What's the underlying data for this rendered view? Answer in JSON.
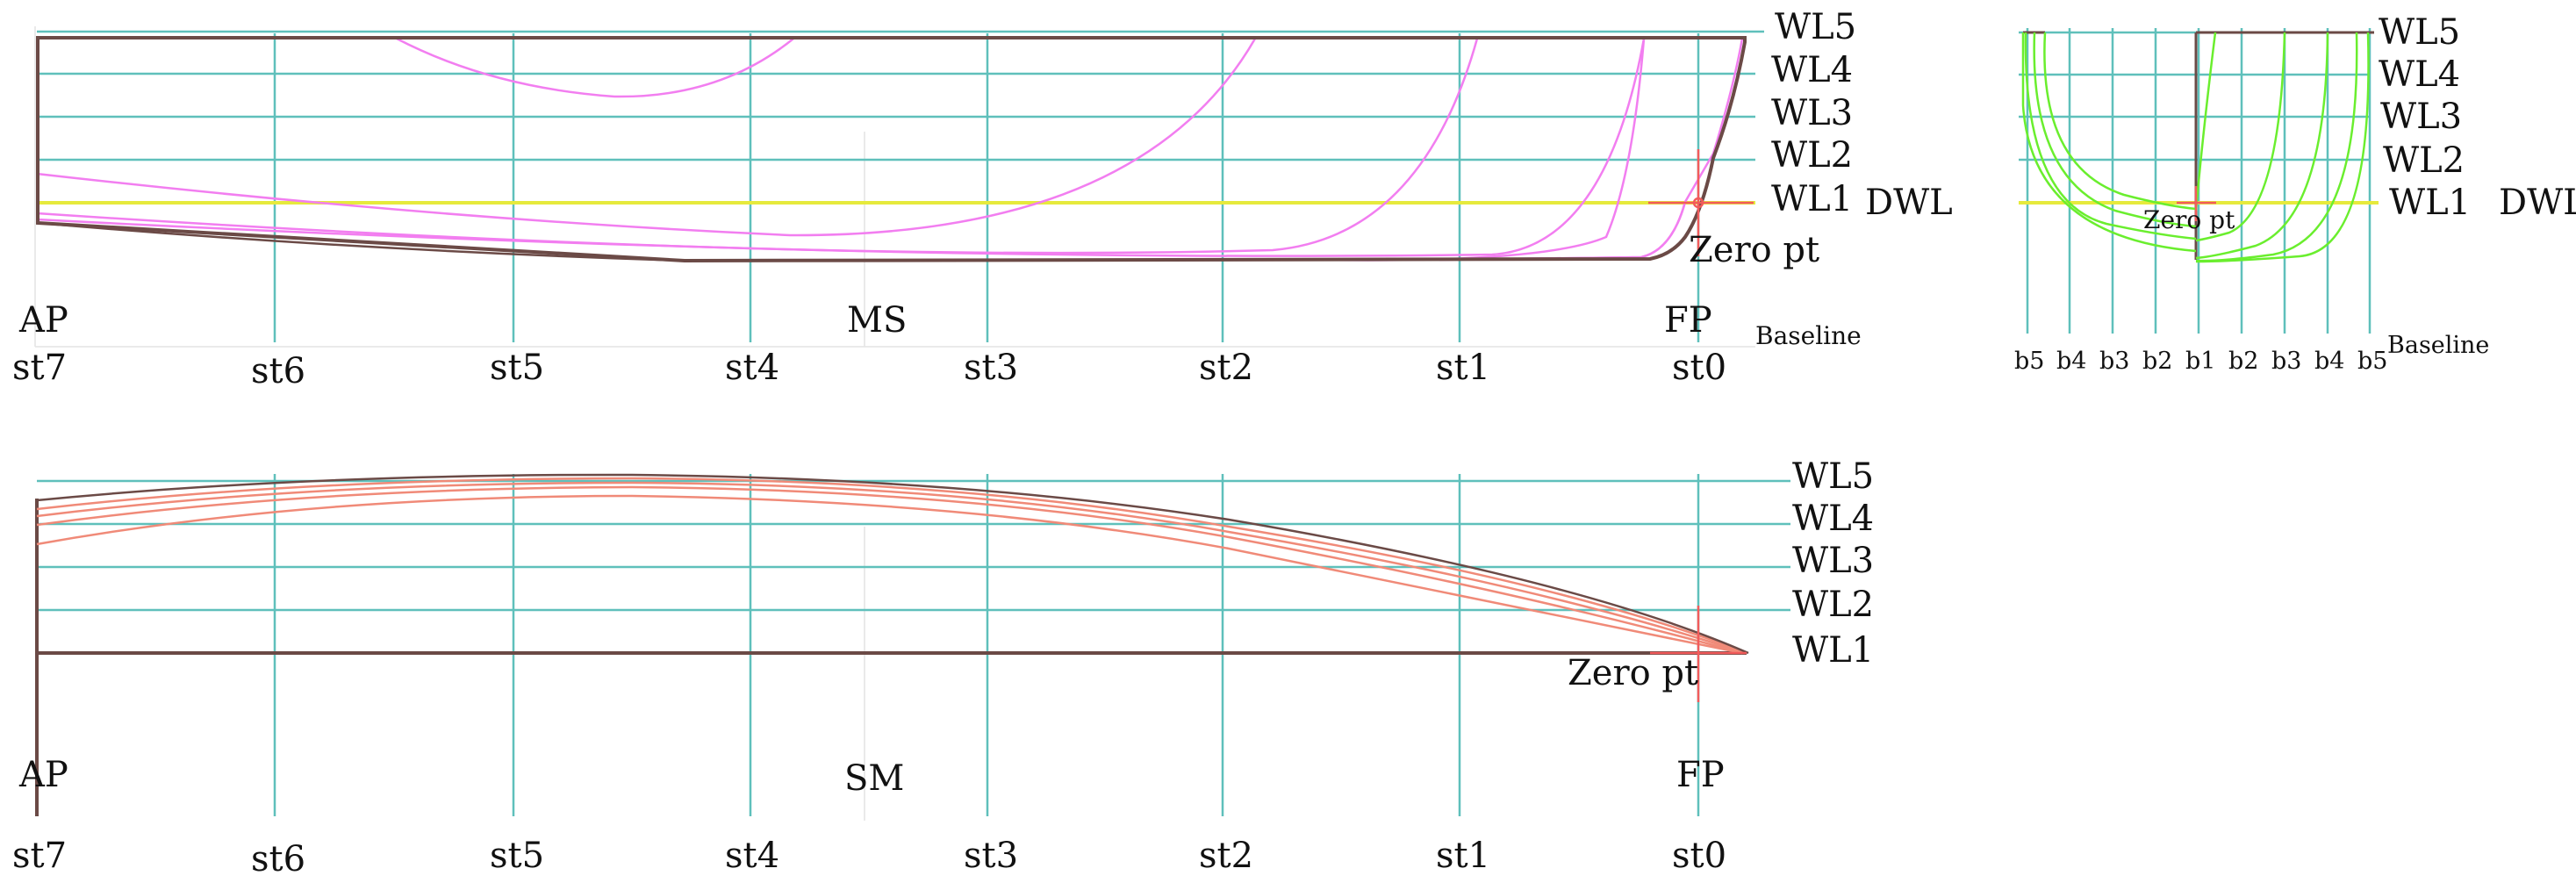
{
  "colors": {
    "grid": "#5fc0bb",
    "outline": "#6b4a46",
    "dwl": "#e6ea3c",
    "sheer_curves": "#f27ef0",
    "body_curves": "#6aee2e",
    "plan_curves": "#f08a78",
    "zero_marker": "#f25b5b",
    "text": "#111111"
  },
  "profile_view": {
    "waterlines": [
      "WL5",
      "WL4",
      "WL3",
      "WL2",
      "WL1"
    ],
    "dwl_label": "DWL",
    "zero_label": "Zero pt",
    "aft_label": "AP",
    "mid_label": "MS",
    "fwd_label": "FP",
    "baseline_label": "Baseline",
    "stations": [
      "st7",
      "st6",
      "st5",
      "st4",
      "st3",
      "st2",
      "st1",
      "st0"
    ]
  },
  "body_plan": {
    "waterlines": [
      "WL5",
      "WL4",
      "WL3",
      "WL2",
      "WL1"
    ],
    "dwl_label": "DWL",
    "zero_label": "Zero pt",
    "baseline_label": "Baseline",
    "buttocks": [
      "b5",
      "b4",
      "b3",
      "b2",
      "b1",
      "b2",
      "b3",
      "b4",
      "b5"
    ]
  },
  "half_breadth_view": {
    "waterlines": [
      "WL5",
      "WL4",
      "WL3",
      "WL2",
      "WL1"
    ],
    "zero_label": "Zero pt",
    "aft_label": "AP",
    "mid_label": "SM",
    "fwd_label": "FP",
    "stations": [
      "st7",
      "st6",
      "st5",
      "st4",
      "st3",
      "st2",
      "st1",
      "st0"
    ]
  }
}
